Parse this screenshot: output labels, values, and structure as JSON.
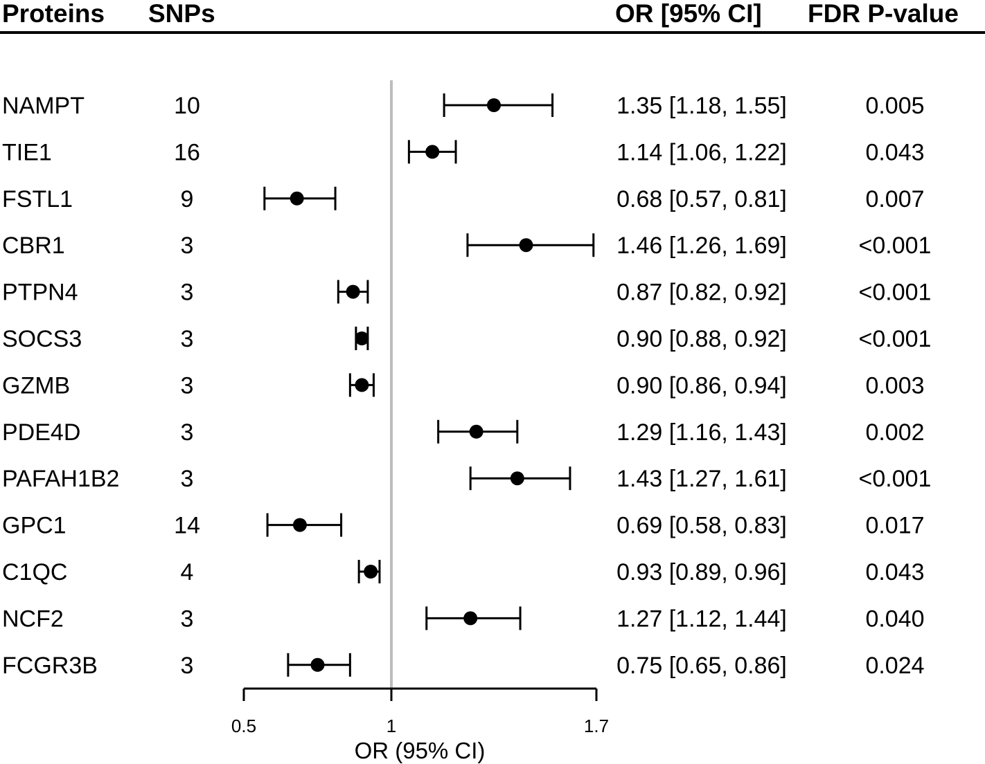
{
  "headers": {
    "protein": "Proteins",
    "snps": "SNPs",
    "or_ci": "OR [95% CI]",
    "fdr": "FDR P-value"
  },
  "chart_data": {
    "type": "forest",
    "xlabel": "OR (95% CI)",
    "reference_line": 1,
    "xlim": [
      0.5,
      1.7
    ],
    "xticks": [
      0.5,
      1,
      1.7
    ],
    "xtick_labels": [
      "0.5",
      "1",
      "1.7"
    ],
    "ref_line_color": "#bdbdbd",
    "rows": [
      {
        "protein": "NAMPT",
        "snps": "10",
        "or": 1.35,
        "lo": 1.18,
        "hi": 1.55,
        "or_text": "1.35 [1.18, 1.55]",
        "fdr": "0.005"
      },
      {
        "protein": "TIE1",
        "snps": "16",
        "or": 1.14,
        "lo": 1.06,
        "hi": 1.22,
        "or_text": "1.14 [1.06, 1.22]",
        "fdr": "0.043"
      },
      {
        "protein": "FSTL1",
        "snps": "9",
        "or": 0.68,
        "lo": 0.57,
        "hi": 0.81,
        "or_text": "0.68 [0.57, 0.81]",
        "fdr": "0.007"
      },
      {
        "protein": "CBR1",
        "snps": "3",
        "or": 1.46,
        "lo": 1.26,
        "hi": 1.69,
        "or_text": "1.46 [1.26, 1.69]",
        "fdr": "<0.001"
      },
      {
        "protein": "PTPN4",
        "snps": "3",
        "or": 0.87,
        "lo": 0.82,
        "hi": 0.92,
        "or_text": "0.87 [0.82, 0.92]",
        "fdr": "<0.001"
      },
      {
        "protein": "SOCS3",
        "snps": "3",
        "or": 0.9,
        "lo": 0.88,
        "hi": 0.92,
        "or_text": "0.90 [0.88, 0.92]",
        "fdr": "<0.001"
      },
      {
        "protein": "GZMB",
        "snps": "3",
        "or": 0.9,
        "lo": 0.86,
        "hi": 0.94,
        "or_text": "0.90 [0.86, 0.94]",
        "fdr": "0.003"
      },
      {
        "protein": "PDE4D",
        "snps": "3",
        "or": 1.29,
        "lo": 1.16,
        "hi": 1.43,
        "or_text": "1.29 [1.16, 1.43]",
        "fdr": "0.002"
      },
      {
        "protein": "PAFAH1B2",
        "snps": "3",
        "or": 1.43,
        "lo": 1.27,
        "hi": 1.61,
        "or_text": "1.43 [1.27, 1.61]",
        "fdr": "<0.001"
      },
      {
        "protein": "GPC1",
        "snps": "14",
        "or": 0.69,
        "lo": 0.58,
        "hi": 0.83,
        "or_text": "0.69 [0.58, 0.83]",
        "fdr": "0.017"
      },
      {
        "protein": "C1QC",
        "snps": "4",
        "or": 0.93,
        "lo": 0.89,
        "hi": 0.96,
        "or_text": "0.93 [0.89, 0.96]",
        "fdr": "0.043"
      },
      {
        "protein": "NCF2",
        "snps": "3",
        "or": 1.27,
        "lo": 1.12,
        "hi": 1.44,
        "or_text": "1.27 [1.12, 1.44]",
        "fdr": "0.040"
      },
      {
        "protein": "FCGR3B",
        "snps": "3",
        "or": 0.75,
        "lo": 0.65,
        "hi": 0.86,
        "or_text": "0.75 [0.65, 0.86]",
        "fdr": "0.024"
      }
    ]
  }
}
